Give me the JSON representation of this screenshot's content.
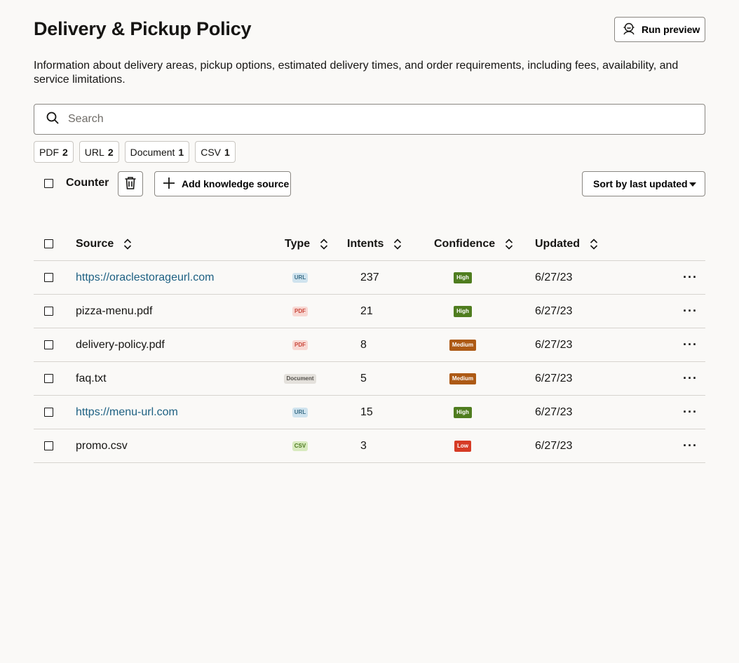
{
  "header": {
    "title": "Delivery & Pickup Policy",
    "run_preview_label": "Run preview",
    "description": "Information about delivery areas, pickup options, estimated delivery times, and order requirements, including fees, availability, and service limitations."
  },
  "search": {
    "placeholder": "Search",
    "value": ""
  },
  "filters": [
    {
      "label": "PDF",
      "count": "2"
    },
    {
      "label": "URL",
      "count": "2"
    },
    {
      "label": "Document",
      "count": "1"
    },
    {
      "label": "CSV",
      "count": "1"
    }
  ],
  "toolbar": {
    "counter_label": "Counter",
    "add_source_label": "Add knowledge source",
    "sort_label": "Sort by last updated"
  },
  "table": {
    "columns": {
      "source": "Source",
      "type": "Type",
      "intents": "Intents",
      "confidence": "Confidence",
      "updated": "Updated"
    },
    "rows": [
      {
        "source": "https://oraclestorageurl.com",
        "is_link": true,
        "type": "URL",
        "type_kind": "url",
        "intents": "237",
        "confidence": "High",
        "conf_kind": "high",
        "updated": "6/27/23"
      },
      {
        "source": "pizza-menu.pdf",
        "is_link": false,
        "type": "PDF",
        "type_kind": "pdf",
        "intents": "21",
        "confidence": "High",
        "conf_kind": "high",
        "updated": "6/27/23"
      },
      {
        "source": "delivery-policy.pdf",
        "is_link": false,
        "type": "PDF",
        "type_kind": "pdf",
        "intents": "8",
        "confidence": "Medium",
        "conf_kind": "medium",
        "updated": "6/27/23"
      },
      {
        "source": "faq.txt",
        "is_link": false,
        "type": "Document",
        "type_kind": "doc",
        "intents": "5",
        "confidence": "Medium",
        "conf_kind": "medium",
        "updated": "6/27/23"
      },
      {
        "source": "https://menu-url.com",
        "is_link": true,
        "type": "URL",
        "type_kind": "url",
        "intents": "15",
        "confidence": "High",
        "conf_kind": "high",
        "updated": "6/27/23"
      },
      {
        "source": "promo.csv",
        "is_link": false,
        "type": "CSV",
        "type_kind": "csv",
        "intents": "3",
        "confidence": "Low",
        "conf_kind": "low",
        "updated": "6/27/23"
      }
    ]
  },
  "icons": {
    "run_preview": "agent-icon",
    "search": "search-icon",
    "delete": "trash-icon",
    "add": "plus-icon",
    "sort_menu": "caret-down-icon",
    "column_sort": "sort-icon",
    "row_actions": "more-icon"
  },
  "colors": {
    "link": "#1d6082",
    "confidence_high": "#4f7d1f",
    "confidence_medium": "#ad5a15",
    "confidence_low": "#d63b25"
  }
}
